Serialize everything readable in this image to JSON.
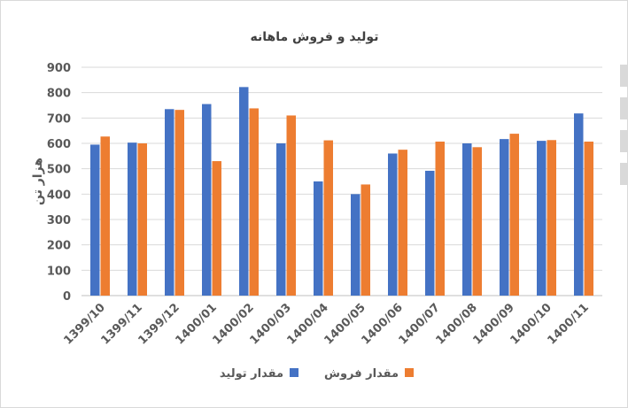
{
  "chart_data": {
    "type": "bar",
    "title": "تولید و فروش ماهانه",
    "xlabel": "",
    "ylabel": "هزار تن",
    "ylim": [
      0,
      900
    ],
    "yticks": [
      0,
      100,
      200,
      300,
      400,
      500,
      600,
      700,
      800,
      900
    ],
    "grid": true,
    "legend_position": "bottom",
    "categories": [
      "1399/10",
      "1399/11",
      "1399/12",
      "1400/01",
      "1400/02",
      "1400/03",
      "1400/04",
      "1400/05",
      "1400/06",
      "1400/07",
      "1400/08",
      "1400/09",
      "1400/10",
      "1400/11"
    ],
    "series": [
      {
        "name": "مقدار تولید",
        "color": "#4472c4",
        "values": [
          595,
          603,
          735,
          755,
          822,
          600,
          450,
          400,
          560,
          492,
          600,
          617,
          610,
          718
        ]
      },
      {
        "name": "مقدار فروش",
        "color": "#ed7d31",
        "values": [
          627,
          600,
          732,
          530,
          738,
          710,
          612,
          438,
          575,
          607,
          585,
          638,
          613,
          607
        ]
      }
    ]
  }
}
